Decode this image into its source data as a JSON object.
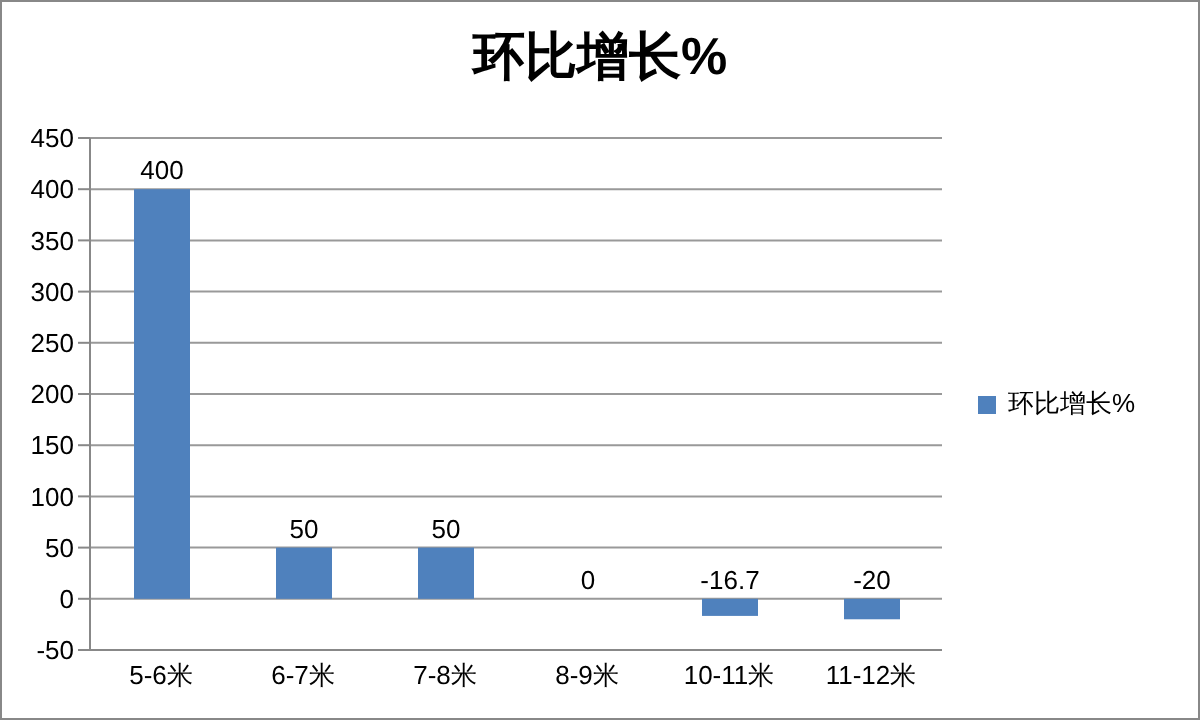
{
  "chart_data": {
    "type": "bar",
    "title": "环比增长%",
    "categories": [
      "5-6米",
      "6-7米",
      "7-8米",
      "8-9米",
      "10-11米",
      "11-12米"
    ],
    "series": [
      {
        "name": "环比增长%",
        "color": "#4f81bd",
        "values": [
          400,
          50,
          50,
          0,
          -16.7,
          -20
        ]
      }
    ],
    "ylim": [
      -50,
      450
    ],
    "yticks": [
      -50,
      0,
      50,
      100,
      150,
      200,
      250,
      300,
      350,
      400,
      450
    ],
    "grid": "y",
    "legend": "right",
    "data_labels": true
  }
}
